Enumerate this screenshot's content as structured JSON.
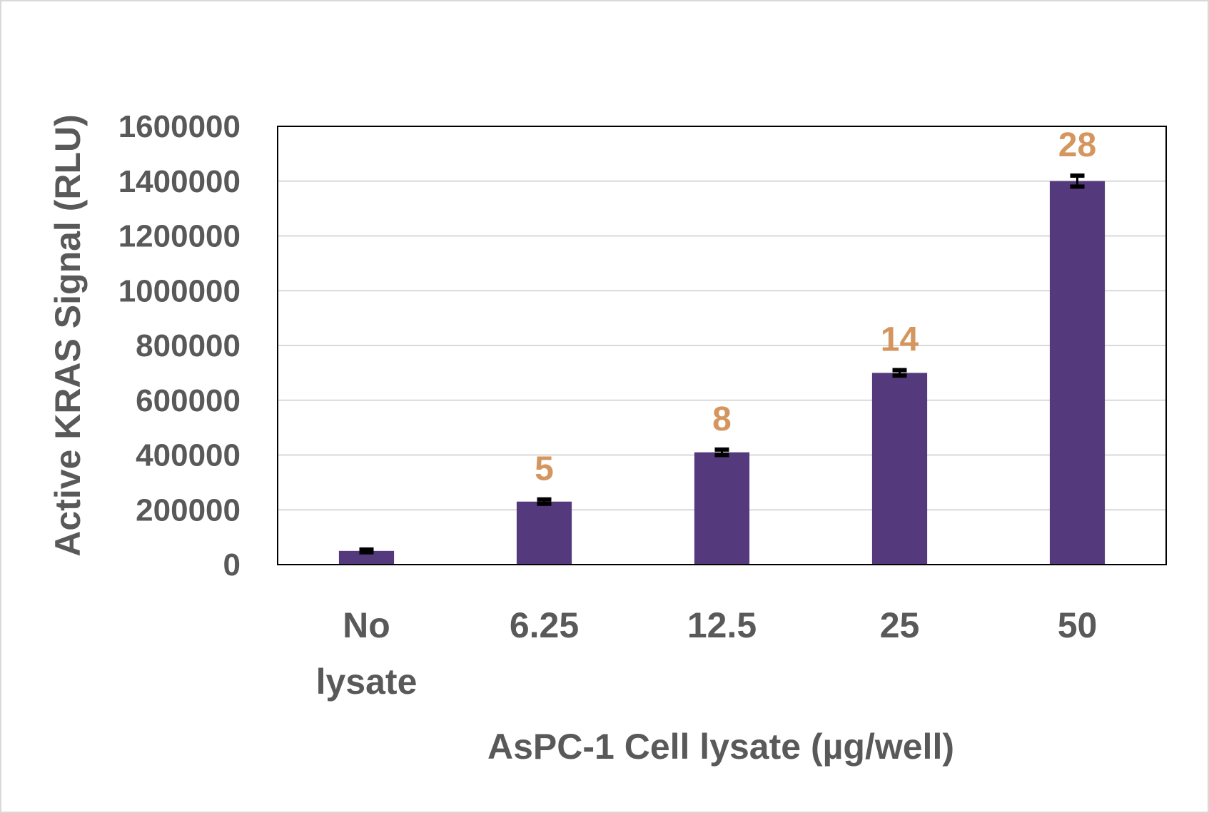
{
  "chart_data": {
    "type": "bar",
    "title": "",
    "xlabel": "AsPC-1 Cell lysate (µg/well)",
    "ylabel": "Active KRAS Signal (RLU)",
    "ylim": [
      0,
      1600000
    ],
    "yticks": [
      "0",
      "200000",
      "400000",
      "600000",
      "800000",
      "1000000",
      "1200000",
      "1400000",
      "1600000"
    ],
    "categories": [
      {
        "lines": [
          "No",
          "lysate"
        ]
      },
      {
        "lines": [
          "6.25"
        ]
      },
      {
        "lines": [
          "12.5"
        ]
      },
      {
        "lines": [
          "25"
        ]
      },
      {
        "lines": [
          "50"
        ]
      }
    ],
    "values": [
      50000,
      230000,
      410000,
      700000,
      1400000
    ],
    "errors": [
      5000,
      8000,
      10000,
      10000,
      20000
    ],
    "annotations": [
      "",
      "5",
      "8",
      "14",
      "28"
    ],
    "grid": true,
    "colors": {
      "bar": "#543a7c",
      "annotation": "#d4965e",
      "text": "#595959",
      "grid": "#d9d9d9"
    }
  }
}
